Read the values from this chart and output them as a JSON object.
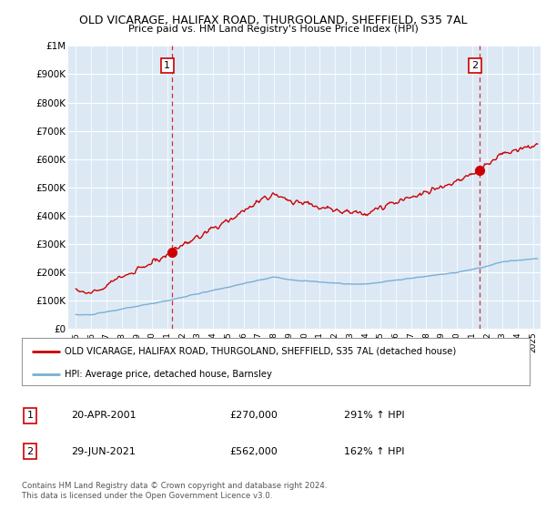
{
  "title": "OLD VICARAGE, HALIFAX ROAD, THURGOLAND, SHEFFIELD, S35 7AL",
  "subtitle": "Price paid vs. HM Land Registry's House Price Index (HPI)",
  "red_label": "OLD VICARAGE, HALIFAX ROAD, THURGOLAND, SHEFFIELD, S35 7AL (detached house)",
  "blue_label": "HPI: Average price, detached house, Barnsley",
  "annotation1_label": "1",
  "annotation1_date": "20-APR-2001",
  "annotation1_price": "£270,000",
  "annotation1_hpi": "291% ↑ HPI",
  "annotation2_label": "2",
  "annotation2_date": "29-JUN-2021",
  "annotation2_price": "£562,000",
  "annotation2_hpi": "162% ↑ HPI",
  "footer": "Contains HM Land Registry data © Crown copyright and database right 2024.\nThis data is licensed under the Open Government Licence v3.0.",
  "ylim": [
    0,
    1000000
  ],
  "yticks": [
    0,
    100000,
    200000,
    300000,
    400000,
    500000,
    600000,
    700000,
    800000,
    900000,
    1000000
  ],
  "ytick_labels": [
    "£0",
    "£100K",
    "£200K",
    "£300K",
    "£400K",
    "£500K",
    "£600K",
    "£700K",
    "£800K",
    "£900K",
    "£1M"
  ],
  "xlim_start": 1994.5,
  "xlim_end": 2025.5,
  "red_color": "#cc0000",
  "blue_color": "#7bafd4",
  "background_color": "#ffffff",
  "chart_bg_color": "#dce9f5",
  "grid_color": "#ffffff",
  "point1_x": 2001.3,
  "point1_y": 270000,
  "point2_x": 2021.5,
  "point2_y": 562000,
  "title_fontsize": 9,
  "subtitle_fontsize": 8.5
}
